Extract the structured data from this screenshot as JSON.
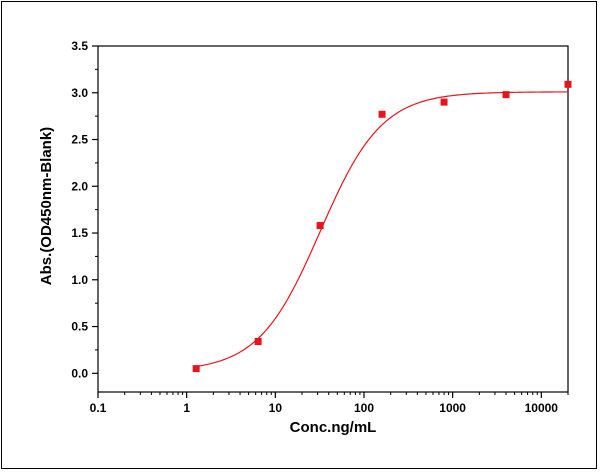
{
  "chart_data": {
    "type": "scatter",
    "title": "",
    "xlabel": "Conc.ng/mL",
    "ylabel": "Abs.(OD450nm-Blank)",
    "x_scale": "log",
    "xlim": [
      0.1,
      20000
    ],
    "ylim": [
      -0.2,
      3.5
    ],
    "grid": false,
    "legend": "none",
    "x_ticks": [
      0.1,
      1,
      10,
      100,
      1000,
      10000
    ],
    "x_tick_labels": [
      "0.1",
      "1",
      "10",
      "100",
      "1000",
      "10000"
    ],
    "y_ticks": [
      0,
      0.5,
      1,
      1.5,
      2,
      2.5,
      3,
      3.5
    ],
    "y_tick_labels": [
      "0.0",
      "0.5",
      "1.0",
      "1.5",
      "2.0",
      "2.5",
      "3.0",
      "3.5"
    ],
    "series": [
      {
        "type": "scatter",
        "x": [
          1.28,
          6.4,
          32,
          160,
          800,
          4000,
          20000
        ],
        "y": [
          0.05,
          0.34,
          1.58,
          2.77,
          2.9,
          2.98,
          3.09
        ],
        "color": "#e8141b",
        "marker": "square"
      },
      {
        "type": "fitted-curve",
        "model": "4PL",
        "bottom": 0.02,
        "top": 3.01,
        "ec50": 32,
        "hill": 1.25,
        "x_range": [
          1.28,
          20000
        ],
        "color": "#e8141b"
      }
    ]
  }
}
